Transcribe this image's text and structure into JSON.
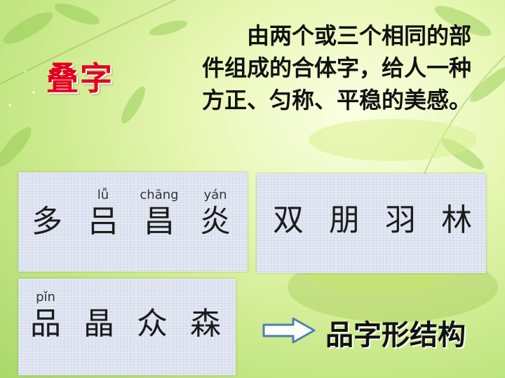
{
  "slide": {
    "title": "叠字",
    "description": "由两个或三个相同的部件组成的合体字，给人一种方正、匀称、平稳的美感。",
    "panel_a": {
      "chars": [
        {
          "pinyin": "",
          "char": "多"
        },
        {
          "pinyin": "lǚ",
          "char": "吕"
        },
        {
          "pinyin": "chāng",
          "char": "昌"
        },
        {
          "pinyin": "yán",
          "char": "炎"
        }
      ]
    },
    "panel_b": {
      "chars": [
        {
          "pinyin": "",
          "char": "双"
        },
        {
          "pinyin": "",
          "char": "朋"
        },
        {
          "pinyin": "",
          "char": "羽"
        },
        {
          "pinyin": "",
          "char": "林"
        }
      ]
    },
    "panel_c": {
      "chars": [
        {
          "pinyin": "pǐn",
          "char": "品"
        },
        {
          "pinyin": "",
          "char": "晶"
        },
        {
          "pinyin": "",
          "char": "众"
        },
        {
          "pinyin": "",
          "char": "森"
        }
      ]
    },
    "result_label": "品字形结构",
    "arrow_icon": "right-arrow-icon"
  }
}
